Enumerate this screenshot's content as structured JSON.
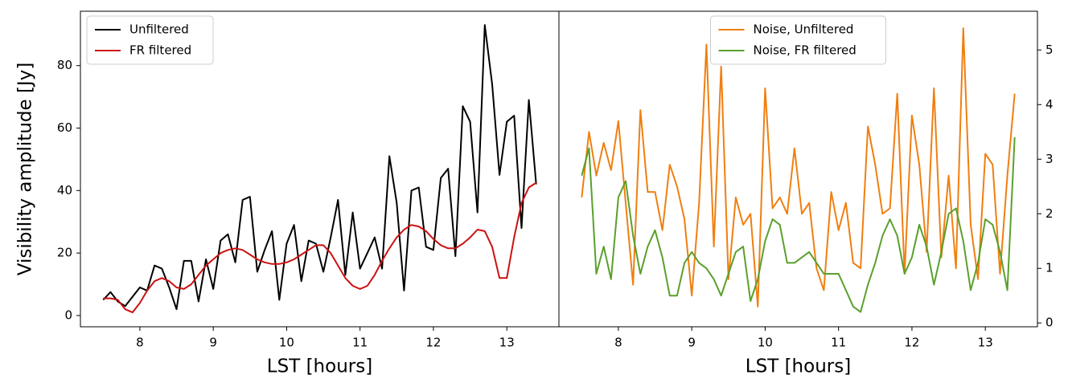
{
  "chart_data": [
    {
      "type": "line",
      "xlabel": "LST [hours]",
      "ylabel": "Visibility amplitude [Jy]",
      "x": [
        7.5,
        7.6,
        7.7,
        7.8,
        7.9,
        8.0,
        8.1,
        8.2,
        8.3,
        8.4,
        8.5,
        8.6,
        8.7,
        8.8,
        8.9,
        9.0,
        9.1,
        9.2,
        9.3,
        9.4,
        9.5,
        9.6,
        9.7,
        9.8,
        9.9,
        10.0,
        10.1,
        10.2,
        10.3,
        10.4,
        10.5,
        10.6,
        10.7,
        10.8,
        10.9,
        11.0,
        11.1,
        11.2,
        11.3,
        11.4,
        11.5,
        11.6,
        11.7,
        11.8,
        11.9,
        12.0,
        12.1,
        12.2,
        12.3,
        12.4,
        12.5,
        12.6,
        12.7,
        12.8,
        12.9,
        13.0,
        13.1,
        13.2,
        13.3,
        13.4
      ],
      "series": [
        {
          "name": "Unfiltered",
          "color": "#000000",
          "values": [
            5,
            7.5,
            4.5,
            3,
            6,
            9,
            8,
            16,
            15,
            9,
            2,
            17.5,
            17.5,
            4.5,
            18,
            8.5,
            24,
            26,
            17,
            37,
            38,
            14,
            21,
            27,
            5,
            23,
            29,
            11,
            24,
            23,
            14,
            25,
            37,
            13,
            33,
            15,
            20,
            25,
            15,
            51,
            36,
            8,
            40,
            41,
            22,
            21,
            44,
            47,
            19,
            67,
            62,
            33,
            93,
            74,
            45,
            62,
            64,
            28,
            69,
            42
          ]
        },
        {
          "name": "FR filtered",
          "color": "#cc1111",
          "values": [
            5.5,
            5.5,
            5,
            2,
            1,
            4,
            8,
            11,
            12,
            11,
            9,
            8.5,
            10,
            13,
            16,
            18,
            20,
            21,
            21.5,
            21,
            19.5,
            18,
            17,
            16.5,
            16.5,
            17,
            18,
            19.5,
            21,
            22.5,
            22.5,
            20,
            16,
            12,
            9.5,
            8.5,
            9.5,
            13,
            17.5,
            21.5,
            25,
            27.5,
            29,
            28.5,
            27,
            24.5,
            22.5,
            21.5,
            21.5,
            23,
            25,
            27.5,
            27,
            22,
            12,
            12,
            25,
            36,
            41,
            42.5
          ]
        }
      ],
      "xlim": [
        7.19,
        13.71
      ],
      "ylim": [
        -3.6,
        97.4
      ],
      "xticks": [
        8,
        9,
        10,
        11,
        12,
        13
      ],
      "yticks": [
        0,
        20,
        40,
        60,
        80
      ],
      "legend": "upper left"
    },
    {
      "type": "line",
      "xlabel": "LST [hours]",
      "x": [
        7.5,
        7.6,
        7.7,
        7.8,
        7.9,
        8.0,
        8.1,
        8.2,
        8.3,
        8.4,
        8.5,
        8.6,
        8.7,
        8.8,
        8.9,
        9.0,
        9.1,
        9.2,
        9.3,
        9.4,
        9.5,
        9.6,
        9.7,
        9.8,
        9.9,
        10.0,
        10.1,
        10.2,
        10.3,
        10.4,
        10.5,
        10.6,
        10.7,
        10.8,
        10.9,
        11.0,
        11.1,
        11.2,
        11.3,
        11.4,
        11.5,
        11.6,
        11.7,
        11.8,
        11.9,
        12.0,
        12.1,
        12.2,
        12.3,
        12.4,
        12.5,
        12.6,
        12.7,
        12.8,
        12.9,
        13.0,
        13.1,
        13.2,
        13.3,
        13.4
      ],
      "series": [
        {
          "name": "Noise, Unfiltered",
          "color": "#f07f10",
          "axis": "y2",
          "values": [
            2.3,
            3.5,
            2.7,
            3.3,
            2.8,
            3.7,
            2.2,
            0.7,
            3.9,
            2.4,
            2.4,
            1.7,
            2.9,
            2.5,
            1.9,
            0.5,
            2.2,
            5.1,
            1.4,
            4.7,
            0.8,
            2.3,
            1.8,
            2.0,
            0.3,
            4.3,
            2.1,
            2.3,
            2.0,
            3.2,
            2.0,
            2.2,
            1.0,
            0.6,
            2.4,
            1.7,
            2.2,
            1.1,
            1.0,
            3.6,
            2.9,
            2.0,
            2.1,
            4.2,
            0.9,
            3.8,
            2.9,
            1.3,
            4.3,
            1.2,
            2.7,
            1.0,
            5.4,
            1.8,
            0.8,
            3.1,
            2.9,
            0.9,
            2.7,
            4.2
          ]
        },
        {
          "name": "Noise, FR filtered",
          "color": "#5aa02c",
          "axis": "y2",
          "values": [
            2.7,
            3.2,
            0.9,
            1.4,
            0.8,
            2.3,
            2.6,
            1.6,
            0.9,
            1.4,
            1.7,
            1.2,
            0.5,
            0.5,
            1.1,
            1.3,
            1.1,
            1.0,
            0.8,
            0.5,
            0.9,
            1.3,
            1.4,
            0.4,
            0.8,
            1.5,
            1.9,
            1.8,
            1.1,
            1.1,
            1.2,
            1.3,
            1.1,
            0.9,
            0.9,
            0.9,
            0.6,
            0.3,
            0.2,
            0.7,
            1.1,
            1.6,
            1.9,
            1.6,
            0.9,
            1.2,
            1.8,
            1.4,
            0.7,
            1.3,
            2.0,
            2.1,
            1.5,
            0.6,
            1.1,
            1.9,
            1.8,
            1.3,
            0.6,
            3.4
          ]
        }
      ],
      "xlim": [
        7.19,
        13.71
      ],
      "y2lim": [
        -0.07,
        5.71
      ],
      "xticks": [
        8,
        9,
        10,
        11,
        12,
        13
      ],
      "y2ticks": [
        0,
        1,
        2,
        3,
        4,
        5
      ],
      "legend": "upper center"
    }
  ]
}
